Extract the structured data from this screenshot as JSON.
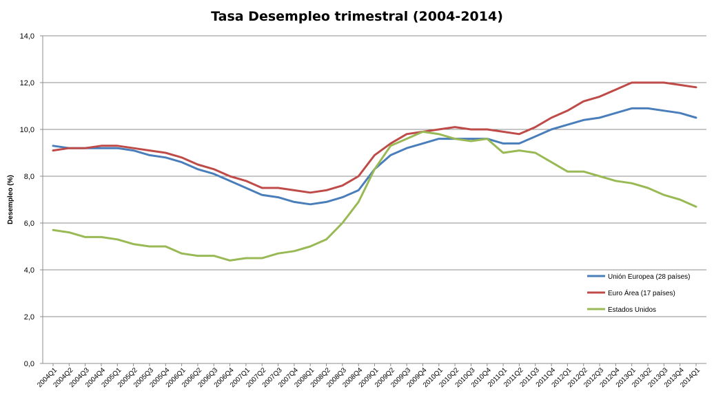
{
  "chart_data": {
    "type": "line",
    "title": "Tasa Desempleo trimestral (2004-2014)",
    "xlabel": "",
    "ylabel": "Desempleo (%)",
    "ylim": [
      0,
      14
    ],
    "yticks": [
      "0,0",
      "2,0",
      "4,0",
      "6,0",
      "8,0",
      "10,0",
      "12,0",
      "14,0"
    ],
    "grid": true,
    "legend_position": "bottom-right",
    "categories": [
      "2004Q1",
      "2004Q2",
      "2004Q3",
      "2004Q4",
      "2005Q1",
      "2005Q2",
      "2005Q3",
      "2005Q4",
      "2006Q1",
      "2006Q2",
      "2006Q3",
      "2006Q4",
      "2007Q1",
      "2007Q2",
      "2007Q3",
      "2007Q4",
      "2008Q1",
      "2008Q2",
      "2008Q3",
      "2008Q4",
      "2009Q1",
      "2009Q2",
      "2009Q3",
      "2009Q4",
      "2010Q1",
      "2010Q2",
      "2010Q3",
      "2010Q4",
      "2011Q1",
      "2011Q2",
      "2011Q3",
      "2011Q4",
      "2012Q1",
      "2012Q2",
      "2012Q3",
      "2012Q4",
      "2013Q1",
      "2013Q2",
      "2013Q3",
      "2013Q4",
      "2014Q1"
    ],
    "series": [
      {
        "name": "Unión Europea (28 países)",
        "color": "#4a7ebb",
        "values": [
          9.3,
          9.2,
          9.2,
          9.2,
          9.2,
          9.1,
          8.9,
          8.8,
          8.6,
          8.3,
          8.1,
          7.8,
          7.5,
          7.2,
          7.1,
          6.9,
          6.8,
          6.9,
          7.1,
          7.4,
          8.3,
          8.9,
          9.2,
          9.4,
          9.6,
          9.6,
          9.6,
          9.6,
          9.4,
          9.4,
          9.7,
          10.0,
          10.2,
          10.4,
          10.5,
          10.7,
          10.9,
          10.9,
          10.8,
          10.7,
          10.5
        ]
      },
      {
        "name": "Euro Área (17 países)",
        "color": "#be4b48",
        "values": [
          9.1,
          9.2,
          9.2,
          9.3,
          9.3,
          9.2,
          9.1,
          9.0,
          8.8,
          8.5,
          8.3,
          8.0,
          7.8,
          7.5,
          7.5,
          7.4,
          7.3,
          7.4,
          7.6,
          8.0,
          8.9,
          9.4,
          9.8,
          9.9,
          10.0,
          10.1,
          10.0,
          10.0,
          9.9,
          9.8,
          10.1,
          10.5,
          10.8,
          11.2,
          11.4,
          11.7,
          12.0,
          12.0,
          12.0,
          11.9,
          11.8
        ]
      },
      {
        "name": "Estados Unidos",
        "color": "#98b954",
        "values": [
          5.7,
          5.6,
          5.4,
          5.4,
          5.3,
          5.1,
          5.0,
          5.0,
          4.7,
          4.6,
          4.6,
          4.4,
          4.5,
          4.5,
          4.7,
          4.8,
          5.0,
          5.3,
          6.0,
          6.9,
          8.3,
          9.3,
          9.6,
          9.9,
          9.8,
          9.6,
          9.5,
          9.6,
          9.0,
          9.1,
          9.0,
          8.6,
          8.2,
          8.2,
          8.0,
          7.8,
          7.7,
          7.5,
          7.2,
          7.0,
          6.7
        ]
      }
    ]
  }
}
